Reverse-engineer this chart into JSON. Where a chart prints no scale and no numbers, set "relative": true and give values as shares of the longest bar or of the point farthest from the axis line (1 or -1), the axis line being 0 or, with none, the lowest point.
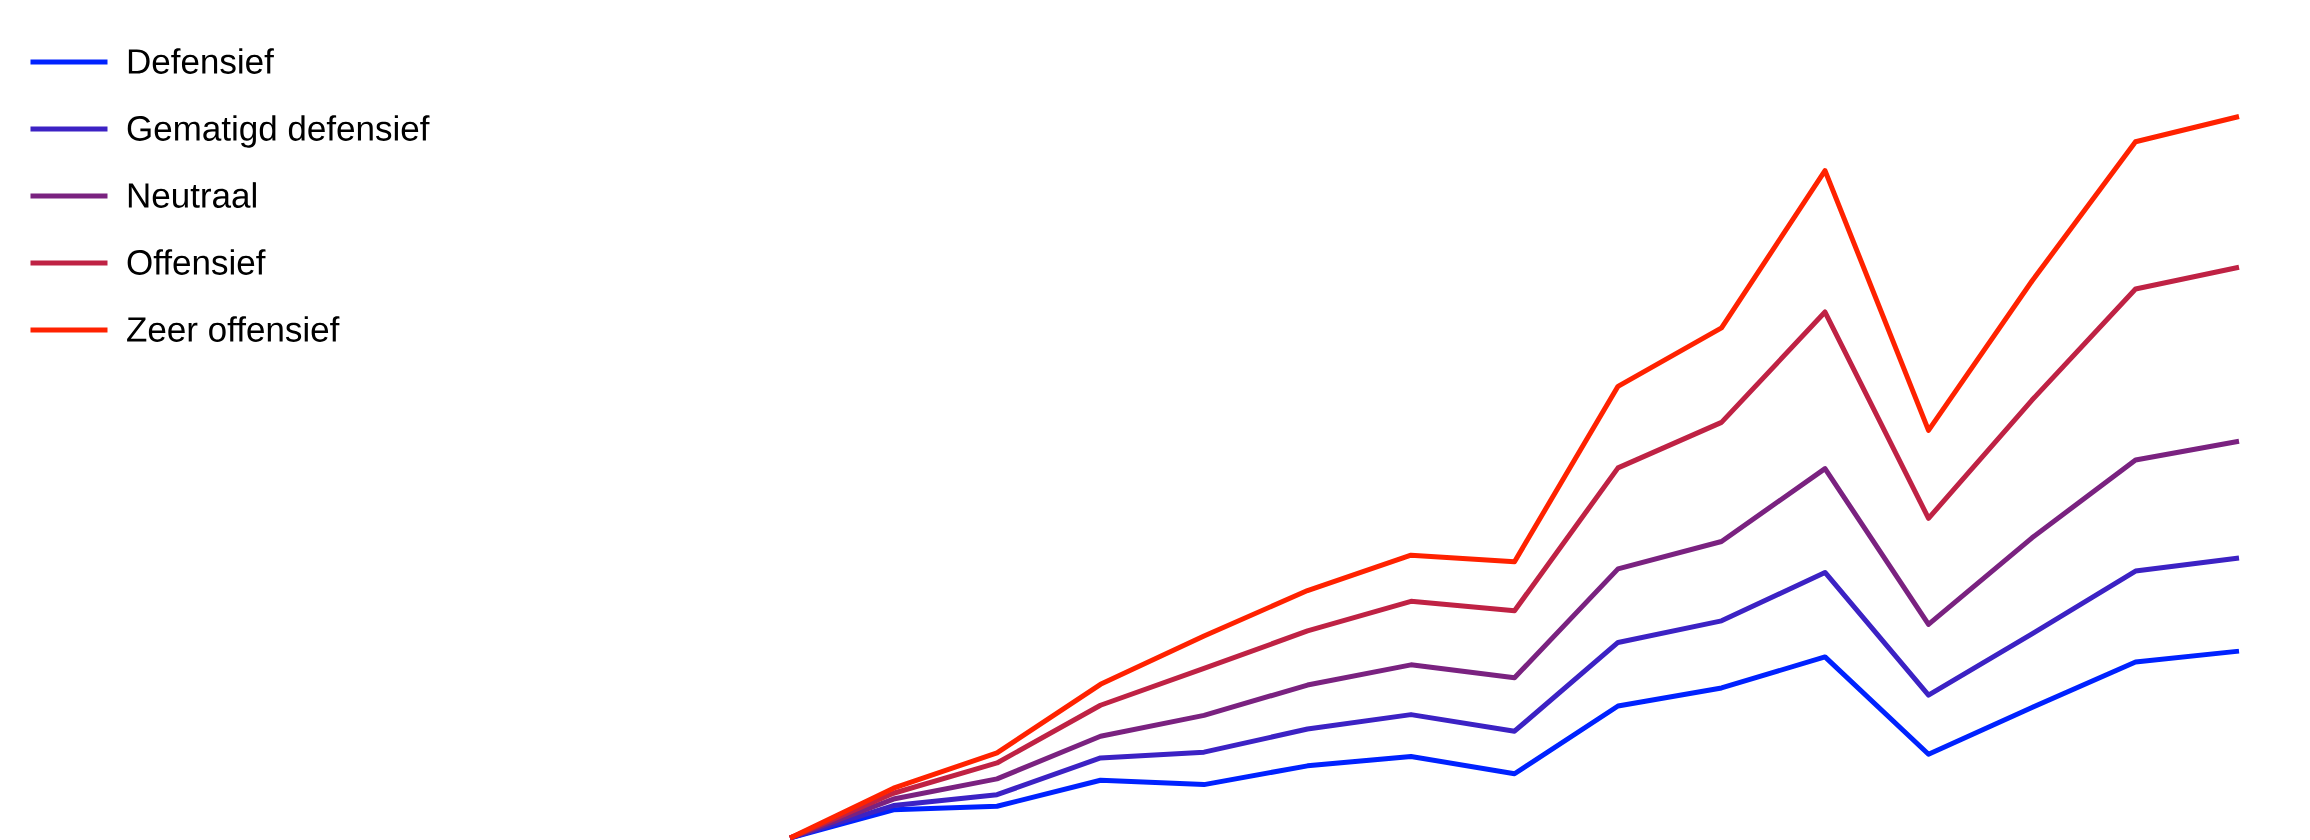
{
  "chart_data": {
    "type": "line",
    "relative": true,
    "legend": "top left",
    "categories": [
      null,
      null,
      null,
      null,
      null,
      null,
      null,
      null,
      null,
      null,
      null,
      null,
      null,
      null,
      null
    ],
    "series": [
      {
        "name": "Defensief",
        "color": "#0022ff",
        "values": [
          0,
          0.039,
          0.044,
          0.08,
          0.074,
          0.1,
          0.113,
          0.089,
          0.183,
          0.208,
          0.251,
          0.116,
          0.181,
          0.244,
          0.259
        ]
      },
      {
        "name": "Gematigd defensief",
        "color": "#3c22c4",
        "values": [
          0,
          0.045,
          0.06,
          0.111,
          0.119,
          0.151,
          0.171,
          0.148,
          0.271,
          0.301,
          0.368,
          0.198,
          0.283,
          0.37,
          0.388
        ]
      },
      {
        "name": "Neutraal",
        "color": "#7a2280",
        "values": [
          0,
          0.054,
          0.082,
          0.141,
          0.17,
          0.212,
          0.24,
          0.222,
          0.373,
          0.411,
          0.512,
          0.296,
          0.416,
          0.524,
          0.55
        ]
      },
      {
        "name": "Offensief",
        "color": "#bf2244",
        "values": [
          0,
          0.062,
          0.104,
          0.184,
          0.235,
          0.287,
          0.328,
          0.315,
          0.513,
          0.576,
          0.729,
          0.443,
          0.607,
          0.761,
          0.791
        ]
      },
      {
        "name": "Zeer offensief",
        "color": "#ff2200",
        "values": [
          0,
          0.069,
          0.118,
          0.213,
          0.28,
          0.343,
          0.392,
          0.383,
          0.626,
          0.707,
          0.925,
          0.565,
          0.772,
          0.965,
          1.0
        ]
      }
    ]
  }
}
